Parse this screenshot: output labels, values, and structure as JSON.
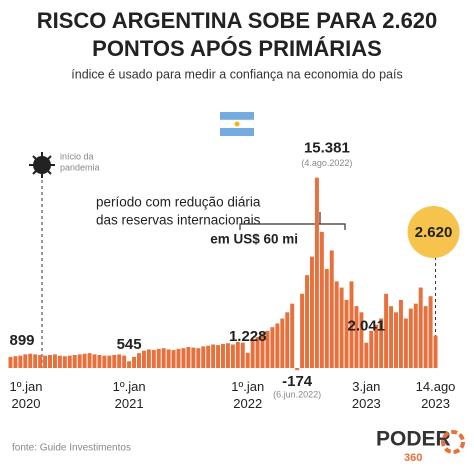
{
  "chart_data": {
    "type": "bar",
    "title": "RISCO ARGENTINA SOBE PARA 2.620",
    "title_line2": "PONTOS APÓS PRIMÁRIAS",
    "subtitle": "índice é usado para medir a confiança na economia do país",
    "color": "#e8703c",
    "highlight_color": "#f6c34c",
    "ylim": [
      0,
      16000
    ],
    "categories": [
      "1º.jan 2020",
      null,
      null,
      null,
      null,
      null,
      null,
      null,
      null,
      null,
      null,
      null,
      null,
      null,
      null,
      null,
      null,
      null,
      null,
      null,
      null,
      null,
      null,
      null,
      "1º.jan 2021",
      null,
      null,
      null,
      null,
      null,
      null,
      null,
      null,
      null,
      null,
      null,
      null,
      null,
      null,
      null,
      null,
      null,
      null,
      null,
      null,
      null,
      null,
      null,
      "1º.jan 2022",
      null,
      null,
      null,
      null,
      null,
      null,
      null,
      null,
      null,
      null,
      null,
      null,
      null,
      null,
      null,
      null,
      null,
      null,
      null,
      null,
      null,
      null,
      null,
      "3.jan 2023",
      null,
      null,
      null,
      null,
      null,
      null,
      null,
      null,
      null,
      null,
      null,
      null,
      null,
      "14.ago 2023"
    ],
    "values": [
      899,
      950,
      1000,
      1100,
      1150,
      1100,
      1050,
      1000,
      1050,
      1100,
      1000,
      950,
      1000,
      1050,
      1100,
      1150,
      1200,
      1100,
      1050,
      1000,
      1000,
      1050,
      1100,
      1000,
      545,
      900,
      1200,
      1400,
      1500,
      1450,
      1550,
      1600,
      1500,
      1450,
      1550,
      1600,
      1700,
      1650,
      1600,
      1750,
      1800,
      1900,
      1850,
      1950,
      2000,
      1900,
      2100,
      2050,
      1228,
      2200,
      2500,
      2800,
      3000,
      3300,
      3600,
      4000,
      4500,
      5200,
      -174,
      6000,
      7500,
      9000,
      15381,
      11000,
      8000,
      9500,
      7000,
      6500,
      5500,
      7000,
      5000,
      4500,
      2041,
      3000,
      3500,
      4000,
      6000,
      5000,
      4500,
      5500,
      4000,
      4800,
      5200,
      6500,
      5000,
      5800,
      2620
    ],
    "value_labels": [
      "899",
      null,
      null,
      null,
      null,
      null,
      null,
      null,
      null,
      null,
      null,
      null,
      null,
      null,
      null,
      null,
      null,
      null,
      null,
      null,
      null,
      null,
      null,
      null,
      "545",
      null,
      null,
      null,
      null,
      null,
      null,
      null,
      null,
      null,
      null,
      null,
      null,
      null,
      null,
      null,
      null,
      null,
      null,
      null,
      null,
      null,
      null,
      null,
      "1.228",
      null,
      null,
      null,
      null,
      null,
      null,
      null,
      null,
      null,
      "-174",
      null,
      null,
      null,
      "15.381",
      null,
      null,
      null,
      null,
      null,
      null,
      null,
      null,
      null,
      "2.041",
      null,
      null,
      null,
      null,
      null,
      null,
      null,
      null,
      null,
      null,
      null,
      null,
      null,
      "2.620"
    ],
    "annotations": {
      "peak_date": "(4.ago.2022)",
      "low_date": "(6.jun.2022)",
      "pandemic_1": "início da",
      "pandemic_2": "pandemia",
      "period_1": "período com redução diária",
      "period_2": "das reservas internacionais",
      "period_3": "em US$ 60 mi"
    },
    "source": "fonte: Guide Investimentos",
    "logo": "PODER",
    "logo_sub": "360"
  }
}
